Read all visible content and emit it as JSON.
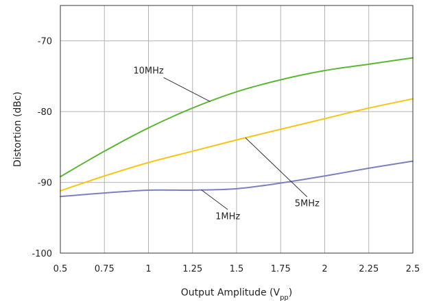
{
  "chart_data": {
    "type": "line",
    "title": "",
    "xlabel": "Output Amplitude (V",
    "xlabel_subscript": "pp",
    "xlabel_close": ")",
    "ylabel": "Distortion (dBc)",
    "xlim": [
      0.5,
      2.5
    ],
    "ylim": [
      -100,
      -65
    ],
    "xticks": [
      0.5,
      0.75,
      1,
      1.25,
      1.5,
      1.75,
      2,
      2.25,
      2.5
    ],
    "xtick_labels": [
      "0.5",
      "0.75",
      "1",
      "1.25",
      "1.5",
      "1.75",
      "2",
      "2.25",
      "2.5"
    ],
    "yticks": [
      -100,
      -90,
      -80,
      -70
    ],
    "ytick_labels": [
      "-100",
      "-90",
      "-80",
      "-70"
    ],
    "grid": true,
    "legend": "none",
    "x": [
      0.5,
      0.75,
      1,
      1.25,
      1.5,
      1.75,
      2,
      2.25,
      2.5
    ],
    "series": [
      {
        "name": "10MHz",
        "color": "#5db535",
        "values": [
          -89.2,
          -85.6,
          -82.3,
          -79.5,
          -77.2,
          -75.5,
          -74.2,
          -73.3,
          -72.4
        ]
      },
      {
        "name": "5MHz",
        "color": "#f5c518",
        "values": [
          -91.2,
          -89.1,
          -87.2,
          -85.6,
          -84.0,
          -82.5,
          -81.0,
          -79.5,
          -78.2
        ]
      },
      {
        "name": "1MHz",
        "color": "#7b7fc0",
        "values": [
          -92.0,
          -91.5,
          -91.1,
          -91.1,
          -90.9,
          -90.1,
          -89.1,
          -88.0,
          -87.0
        ]
      }
    ],
    "annotations": [
      {
        "text": "10MHz",
        "series": "10MHz",
        "at_x": 1.35,
        "label_x": 1.0,
        "label_y": -74.6
      },
      {
        "text": "5MHz",
        "series": "5MHz",
        "at_x": 1.55,
        "label_x": 1.9,
        "label_y": -93.4
      },
      {
        "text": "1MHz",
        "series": "1MHz",
        "at_x": 1.3,
        "label_x": 1.45,
        "label_y": -95.2
      }
    ]
  }
}
